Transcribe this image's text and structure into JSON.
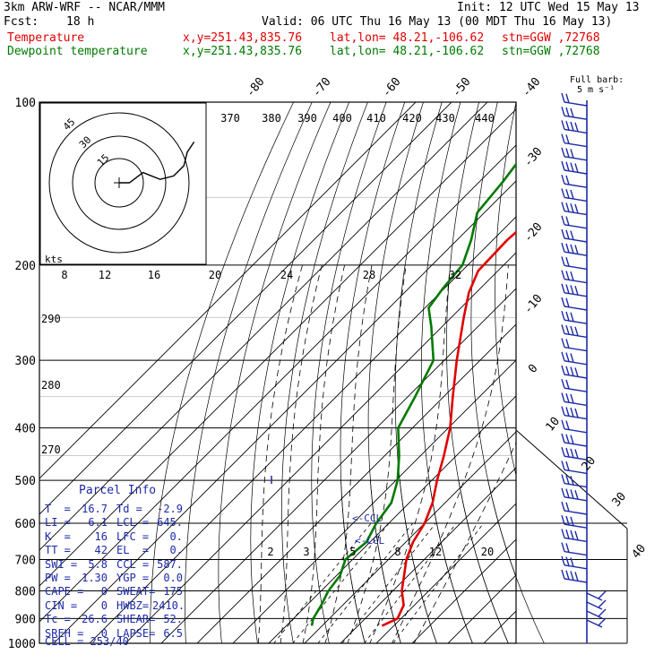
{
  "header": {
    "title": "3km ARW-WRF -- NCAR/MMM",
    "init": "Init: 12 UTC Wed 15 May 13",
    "fcst_label": "Fcst:",
    "fcst_value": "18 h",
    "valid": "Valid: 06 UTC Thu 16 May 13 (00 MDT Thu 16 May 13)",
    "legend_temp": "Temperature",
    "legend_dew": "Dewpoint temperature",
    "xy": "x,y=251.43,835.76",
    "latlon": "lat,lon= 48.21,-106.62",
    "stn": "stn=GGW ,72768",
    "barb_title": "Full barb:",
    "barb_unit": "5 m s⁻¹"
  },
  "colors": {
    "temperature": "#e00000",
    "dewpoint": "#007a00",
    "parcel_info": "#1c2aa8",
    "grid": "#000000"
  },
  "parcel_info": {
    "title": "Parcel Info",
    "rows": [
      [
        "T  =",
        "16.7",
        "Td =",
        "-2.9"
      ],
      [
        "LI =",
        "6.1",
        "LCL =",
        "645."
      ],
      [
        "K  =",
        "16",
        "LFC =",
        "0."
      ],
      [
        "TT =",
        "42",
        "EL  =",
        "0."
      ],
      [
        "SWI =",
        "5.8",
        "CCL =",
        "587."
      ],
      [
        "PW =",
        "1.30",
        "YGP =",
        "0.0"
      ],
      [
        "CAPE =",
        "0",
        "SWEAT=",
        "175"
      ],
      [
        "CIN =",
        "0",
        "HWBZ=",
        "2410."
      ],
      [
        "Tc =",
        "26.6",
        "SHEAR=",
        "52."
      ],
      [
        "SREH =",
        "0",
        "LAPSE=",
        "6.5"
      ]
    ],
    "cell": "CELL = 253/40"
  },
  "chart_data": {
    "type": "line",
    "xlabel": "",
    "ylabel": "",
    "pressure_levels": [
      100,
      200,
      300,
      400,
      500,
      600,
      700,
      800,
      900,
      1000
    ],
    "pressure_labels": [
      "100",
      "200",
      "300",
      "400",
      "500",
      "600",
      "700",
      "800",
      "900",
      "1000"
    ],
    "isotherms": [
      -80,
      -70,
      -60,
      -50,
      -40,
      -30,
      -20,
      -10,
      0,
      10,
      20,
      30,
      40
    ],
    "isotherm_labels": [
      "-80",
      "-70",
      "-60",
      "-50",
      "-40",
      "-30",
      "-20",
      "-10",
      "0",
      "10",
      "20",
      "30",
      "40"
    ],
    "theta_labels": [
      "370",
      "380",
      "390",
      "400",
      "410",
      "420",
      "430",
      "440"
    ],
    "mixing_ratio_labels": [
      "2",
      "3",
      "5",
      "8",
      "12",
      "20"
    ],
    "hodo_speed_labels": [
      "8",
      "12",
      "16",
      "20",
      "24",
      "28",
      "32"
    ],
    "hodo_ring_labels": [
      "15",
      "30",
      "45"
    ],
    "adiabat_labels": [
      "290",
      "280",
      "270"
    ],
    "hodo_kts_label": "kts",
    "ccl_label": "<-CCL",
    "lcl_label": "<-LCL",
    "series": [
      {
        "name": "Temperature",
        "color": "#e00000",
        "points": [
          [
            928,
            16.7
          ],
          [
            900,
            19.0
          ],
          [
            850,
            17.0
          ],
          [
            800,
            12.5
          ],
          [
            700,
            5.0
          ],
          [
            650,
            2.0
          ],
          [
            600,
            0.0
          ],
          [
            550,
            -3.5
          ],
          [
            500,
            -8.5
          ],
          [
            450,
            -13.5
          ],
          [
            400,
            -19.5
          ],
          [
            350,
            -27.5
          ],
          [
            300,
            -36.5
          ],
          [
            250,
            -46.5
          ],
          [
            225,
            -52.0
          ],
          [
            205,
            -55.5
          ],
          [
            180,
            -56.0
          ],
          [
            150,
            -54.5
          ],
          [
            125,
            -54.5
          ],
          [
            110,
            -52.5
          ],
          [
            100,
            -52.0
          ]
        ]
      },
      {
        "name": "Dewpoint temperature",
        "color": "#007a00",
        "points": [
          [
            928,
            -2.9
          ],
          [
            900,
            -4.5
          ],
          [
            850,
            -6.0
          ],
          [
            800,
            -8.0
          ],
          [
            750,
            -9.0
          ],
          [
            700,
            -12.0
          ],
          [
            650,
            -11.0
          ],
          [
            600,
            -13.5
          ],
          [
            550,
            -15.0
          ],
          [
            500,
            -19.5
          ],
          [
            450,
            -26.0
          ],
          [
            400,
            -34.0
          ],
          [
            350,
            -38.0
          ],
          [
            300,
            -43.0
          ],
          [
            260,
            -53.0
          ],
          [
            240,
            -59.0
          ],
          [
            220,
            -60.5
          ],
          [
            200,
            -61.5
          ],
          [
            180,
            -66.0
          ],
          [
            160,
            -72.0
          ],
          [
            140,
            -73.5
          ],
          [
            120,
            -76.0
          ],
          [
            110,
            -78.0
          ],
          [
            100,
            -80.0
          ]
        ]
      }
    ],
    "hodograph": [
      [
        0,
        0
      ],
      [
        3,
        0
      ],
      [
        7,
        -3
      ],
      [
        12,
        -1
      ],
      [
        16,
        2
      ],
      [
        19,
        5
      ],
      [
        20,
        9
      ],
      [
        22,
        12
      ]
    ]
  }
}
